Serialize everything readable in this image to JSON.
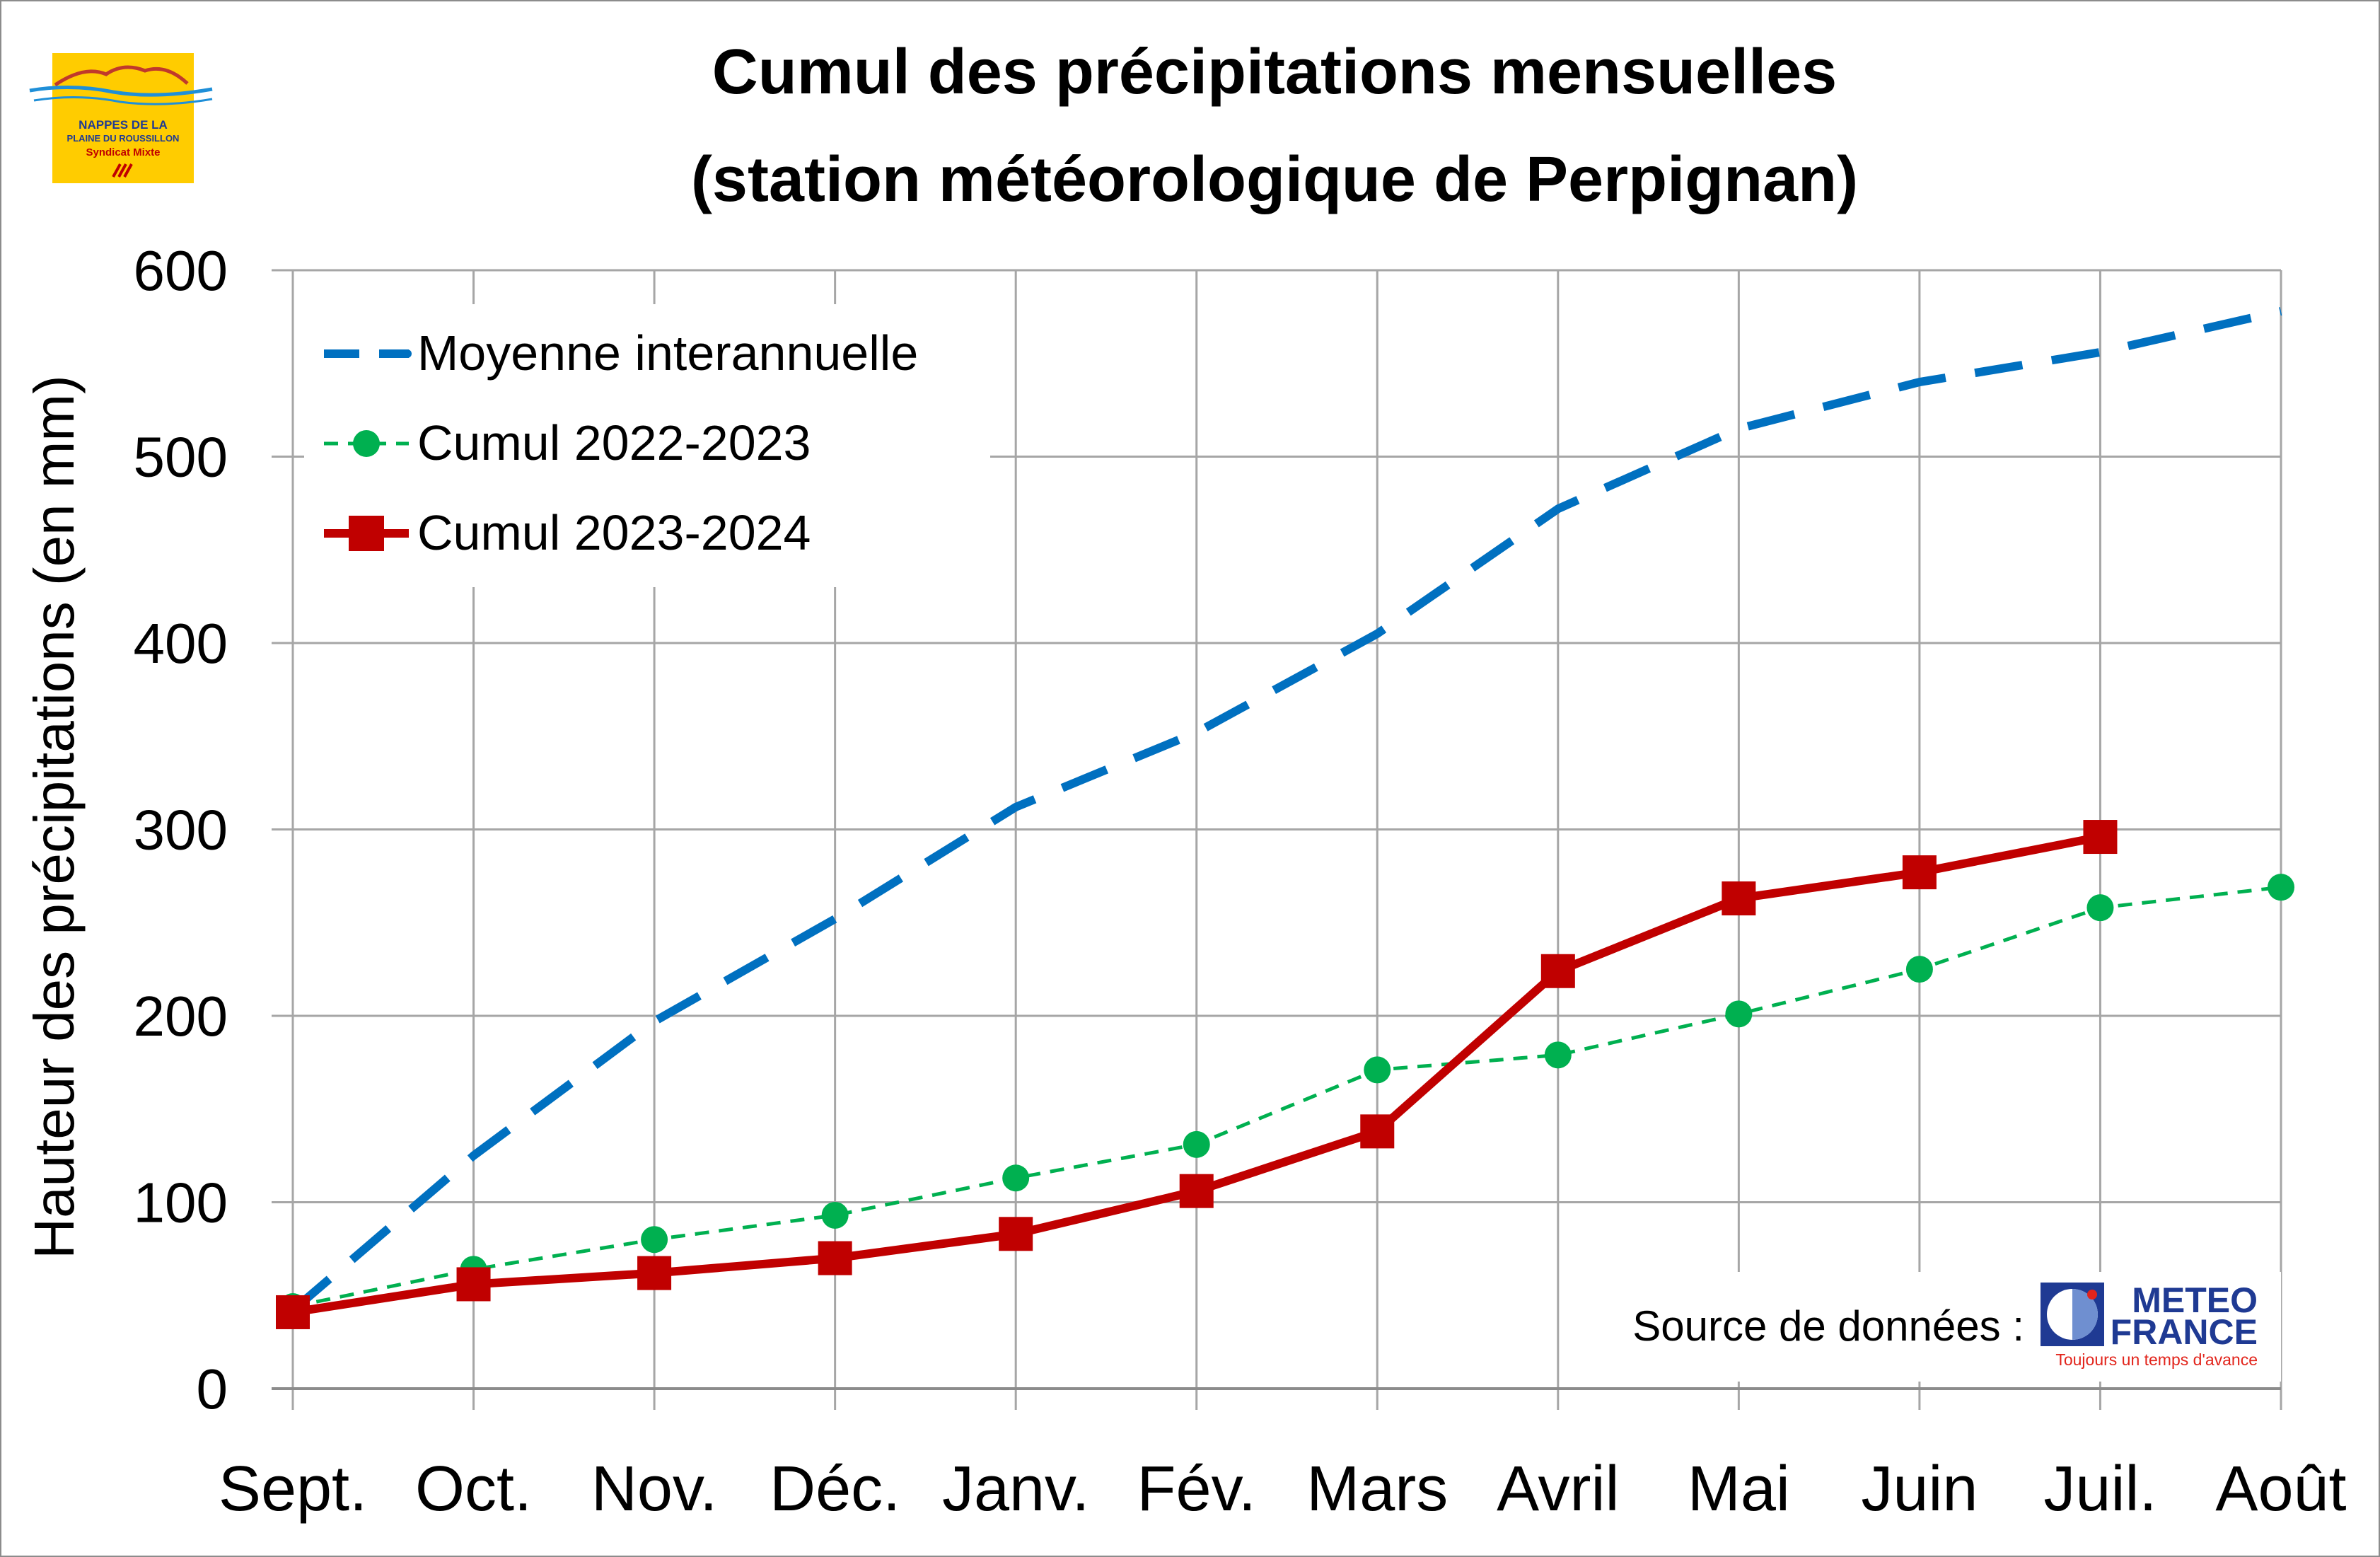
{
  "logo": {
    "line1": "NAPPES DE LA",
    "line2": "PLAINE DU ROUSSILLON",
    "line3": "Syndicat Mixte"
  },
  "source": {
    "label": "Source de données :",
    "brand_line1": "METEO",
    "brand_line2": "FRANCE",
    "tagline": "Toujours un temps d'avance"
  },
  "colors": {
    "moyenne": "#0070C0",
    "cumul_2022": "#00B050",
    "cumul_2023": "#C00000",
    "grid": "#a6a6a6",
    "logo_bg": "#FFCC00"
  },
  "chart_data": {
    "type": "line",
    "title_line1": "Cumul des précipitations mensuelles",
    "title_line2": "(station météorologique de Perpignan)",
    "ylabel": "Hauteur des précipitations (en mm)",
    "xlabel": "",
    "categories": [
      "Sept.",
      "Oct.",
      "Nov.",
      "Déc.",
      "Janv.",
      "Fév.",
      "Mars",
      "Avril",
      "Mai",
      "Juin",
      "Juil.",
      "Août"
    ],
    "ylim": [
      0,
      600
    ],
    "yticks": [
      0,
      100,
      200,
      300,
      400,
      500,
      600
    ],
    "grid": true,
    "legend_position": "top-left",
    "series": [
      {
        "name": "Moyenne interannuelle",
        "style": "dashed",
        "values": [
          42,
          125,
          197,
          252,
          312,
          352,
          405,
          472,
          515,
          540,
          556,
          578
        ]
      },
      {
        "name": "Cumul 2022-2023",
        "style": "dotted-circle",
        "values": [
          44,
          64,
          80,
          93,
          113,
          131,
          171,
          179,
          201,
          225,
          258,
          269
        ]
      },
      {
        "name": "Cumul 2023-2024",
        "style": "solid-square",
        "values": [
          41,
          56,
          62,
          70,
          83,
          106,
          138,
          224,
          263,
          277,
          296,
          null
        ]
      }
    ]
  }
}
